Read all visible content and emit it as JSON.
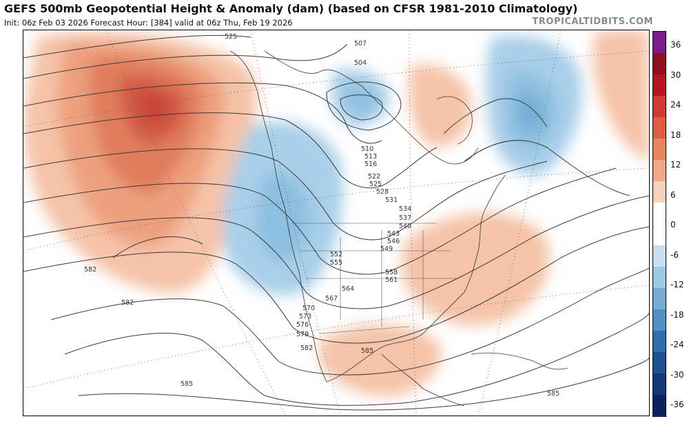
{
  "title": "GEFS 500mb Geopotential Height & Anomaly (dam) (based on CFSR 1981-2010 Climatology)",
  "subtitle": "Init: 06z Feb 03 2026   Forecast Hour: [384]   valid at 06z Thu, Feb 19 2026",
  "credit": "TROPICALTIDBITS.COM",
  "colorbar": {
    "labels": [
      "36",
      "30",
      "24",
      "18",
      "12",
      "6",
      "0",
      "-6",
      "-12",
      "-18",
      "-24",
      "-30",
      "-36"
    ],
    "colors": [
      "#7a1e8c",
      "#8e0f1c",
      "#b3161e",
      "#cf3b32",
      "#de5e44",
      "#e8855f",
      "#f0a985",
      "#f8d2bc",
      "#ffffff",
      "#ffffff",
      "#c7dff0",
      "#9ec9e5",
      "#74acd6",
      "#4f8fc4",
      "#2f6fb0",
      "#1d4f93",
      "#123877",
      "#0a235a"
    ]
  },
  "contour_labels": {
    "north_arctic": [
      "525",
      "507",
      "504"
    ],
    "central_canada": [
      "510",
      "513",
      "516",
      "522",
      "525",
      "528",
      "531"
    ],
    "eastern": [
      "534",
      "537",
      "540",
      "543",
      "546",
      "549"
    ],
    "plains": [
      "552",
      "555",
      "558",
      "561",
      "564",
      "567"
    ],
    "southwest": [
      "570",
      "573",
      "576",
      "579",
      "582"
    ],
    "subtropics": [
      "582",
      "582",
      "585",
      "585",
      "585"
    ]
  }
}
